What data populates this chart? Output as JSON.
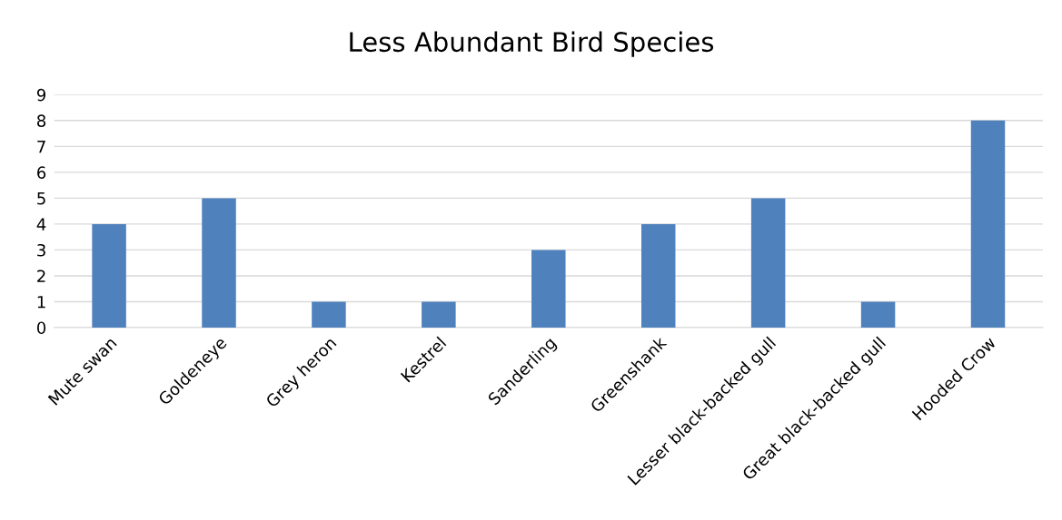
{
  "chart_data": {
    "type": "bar",
    "title": "Less Abundant Bird Species",
    "categories": [
      "Mute swan",
      "Goldeneye",
      "Grey heron",
      "Kestrel",
      "Sanderling",
      "Greenshank",
      "Lesser black-backed gull",
      "Great black-backed gull",
      "Hooded Crow"
    ],
    "values": [
      4,
      5,
      1,
      1,
      3,
      4,
      5,
      1,
      8
    ],
    "color": "#4f81bd",
    "ylim": [
      0,
      9
    ],
    "yticks": [
      0,
      1,
      2,
      3,
      4,
      5,
      6,
      7,
      8,
      9
    ],
    "grid": "y"
  }
}
